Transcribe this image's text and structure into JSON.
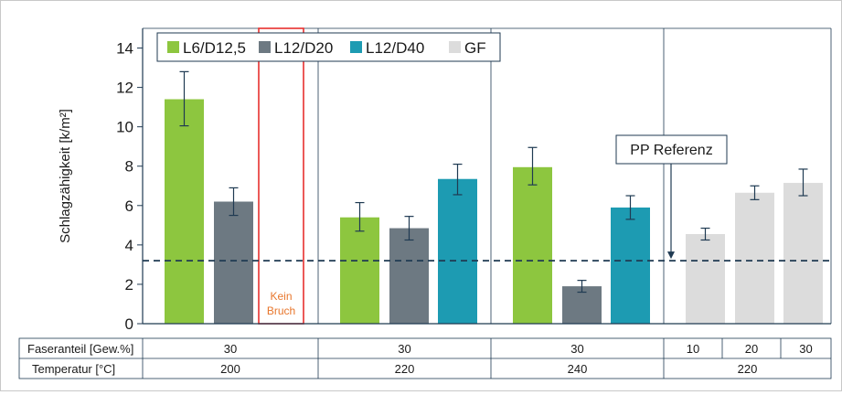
{
  "chart_data": {
    "type": "bar",
    "ylabel": "Schlagzähigkeit [k/m²]",
    "ylim": [
      0,
      15
    ],
    "yticks": [
      0,
      2,
      4,
      6,
      8,
      10,
      12,
      14
    ],
    "legend": {
      "placement": "top-left",
      "entries": [
        {
          "name": "L6/D12,5",
          "color": "#8dc63f"
        },
        {
          "name": "L12/D20",
          "color": "#6d7982"
        },
        {
          "name": "L12/D40",
          "color": "#1d9bb2"
        },
        {
          "name": "GF",
          "color": "#dcdcdc"
        }
      ]
    },
    "groups": [
      {
        "faseranteil": "30",
        "temperatur": "200",
        "bars": [
          {
            "series": "L6/D12,5",
            "value": 11.4,
            "err_low": 10.05,
            "err_high": 12.8
          },
          {
            "series": "L12/D20",
            "value": 6.2,
            "err_low": 5.5,
            "err_high": 6.9
          },
          {
            "series": "L12/D40",
            "value": null,
            "label": "Kein\nBruch"
          }
        ]
      },
      {
        "faseranteil": "30",
        "temperatur": "220",
        "bars": [
          {
            "series": "L6/D12,5",
            "value": 5.4,
            "err_low": 4.7,
            "err_high": 6.15
          },
          {
            "series": "L12/D20",
            "value": 4.85,
            "err_low": 4.25,
            "err_high": 5.45
          },
          {
            "series": "L12/D40",
            "value": 7.35,
            "err_low": 6.55,
            "err_high": 8.1
          }
        ]
      },
      {
        "faseranteil": "30",
        "temperatur": "240",
        "bars": [
          {
            "series": "L6/D12,5",
            "value": 7.95,
            "err_low": 7.05,
            "err_high": 8.95
          },
          {
            "series": "L12/D20",
            "value": 1.9,
            "err_low": 1.6,
            "err_high": 2.2
          },
          {
            "series": "L12/D40",
            "value": 5.9,
            "err_low": 5.3,
            "err_high": 6.5
          }
        ]
      },
      {
        "temperatur": "220",
        "bars": [
          {
            "series": "GF",
            "faseranteil": "10",
            "value": 4.55,
            "err_low": 4.25,
            "err_high": 4.85
          },
          {
            "series": "GF",
            "faseranteil": "20",
            "value": 6.65,
            "err_low": 6.3,
            "err_high": 7.0
          },
          {
            "series": "GF",
            "faseranteil": "30",
            "value": 7.15,
            "err_low": 6.5,
            "err_high": 7.85
          }
        ]
      }
    ],
    "reference": {
      "label": "PP Referenz",
      "value": 3.2
    },
    "table": {
      "row_labels": [
        "Faseranteil [Gew.%]",
        "Temperatur [°C]"
      ]
    }
  }
}
